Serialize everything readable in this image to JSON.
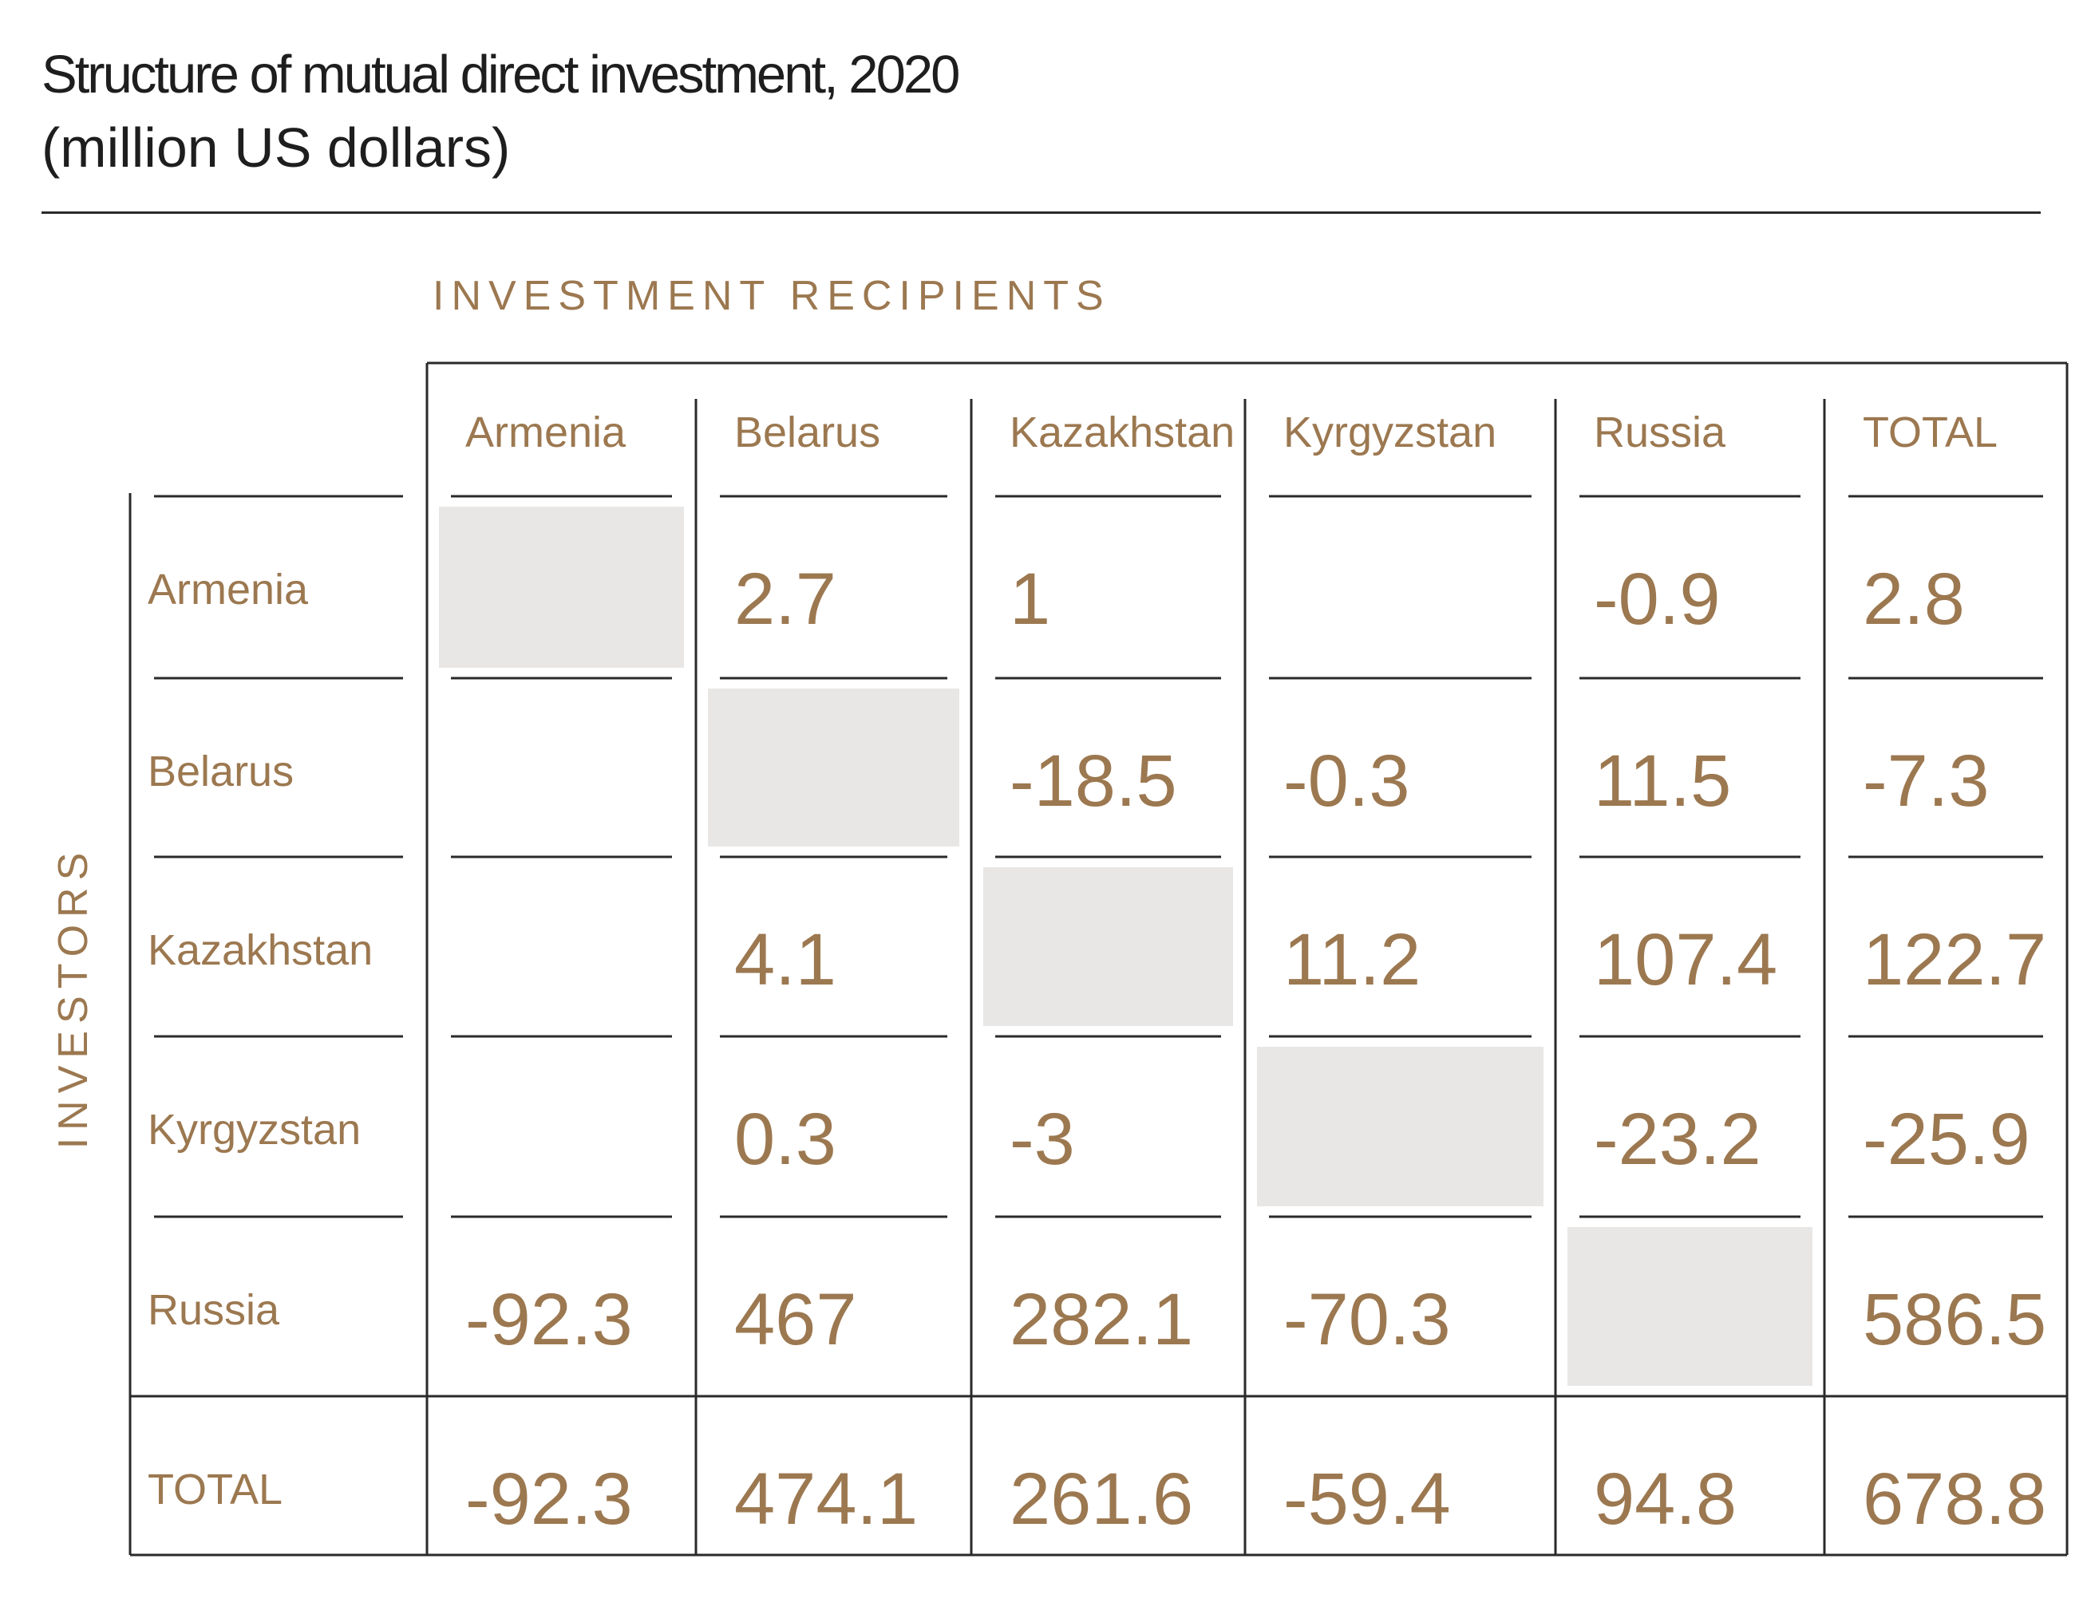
{
  "chart_data": {
    "type": "table",
    "title": "Structure of mutual direct investment, 2020",
    "subtitle": "(million US dollars)",
    "column_group_label": "INVESTMENT RECIPIENTS",
    "row_group_label": "INVESTORS",
    "columns": [
      "Armenia",
      "Belarus",
      "Kazakhstan",
      "Kyrgyzstan",
      "Russia",
      "TOTAL"
    ],
    "rows": [
      {
        "name": "Armenia",
        "values": [
          "",
          "2.7",
          "1",
          "",
          "-0.9",
          "2.8"
        ]
      },
      {
        "name": "Belarus",
        "values": [
          "",
          "",
          "-18.5",
          "-0.3",
          "11.5",
          "-7.3"
        ]
      },
      {
        "name": "Kazakhstan",
        "values": [
          "",
          "4.1",
          "",
          "11.2",
          "107.4",
          "122.7"
        ]
      },
      {
        "name": "Kyrgyzstan",
        "values": [
          "",
          "0.3",
          "-3",
          "",
          "-23.2",
          "-25.9"
        ]
      },
      {
        "name": "Russia",
        "values": [
          "-92.3",
          "467",
          "282.1",
          "-70.3",
          "",
          "586.5"
        ]
      }
    ],
    "total_row": {
      "name": "TOTAL",
      "values": [
        "-92.3",
        "474.1",
        "261.6",
        "-59.4",
        "94.8",
        "678.8"
      ]
    },
    "colors": {
      "text": "#9c7850",
      "lines": "#2a2a2a",
      "diagonal": "#e8e7e6"
    }
  }
}
